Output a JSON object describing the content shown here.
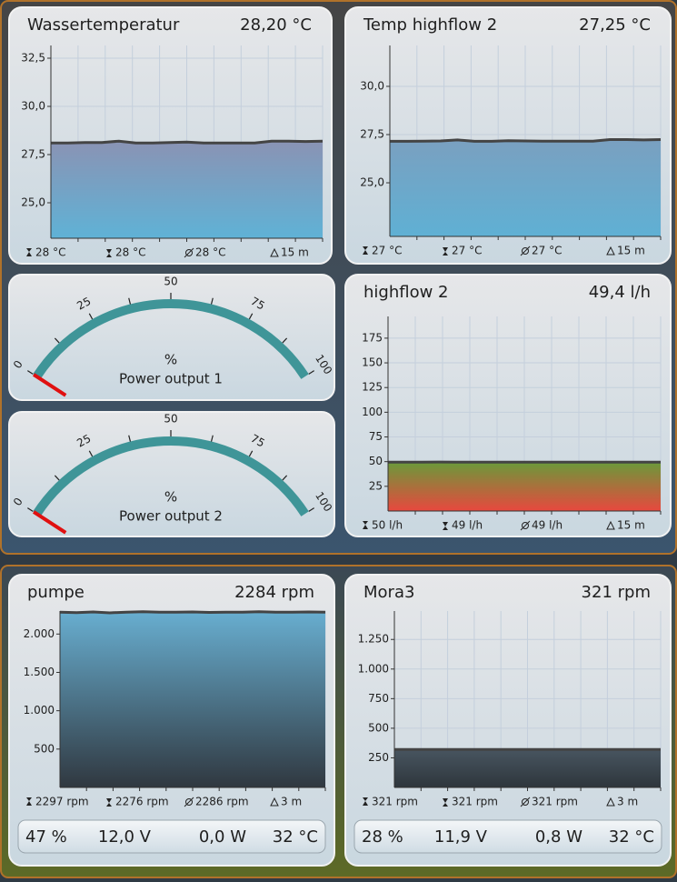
{
  "chart_data": [
    {
      "type": "area",
      "title": "Wassertemperatur",
      "reading": "28,20 °C",
      "ylim": [
        23.16,
        33.16
      ],
      "yticks": [
        {
          "value": 25,
          "label": "25,0"
        },
        {
          "value": 27.5,
          "label": "27,5"
        },
        {
          "value": 30,
          "label": "30,0"
        },
        {
          "value": 32.5,
          "label": "32,5"
        }
      ],
      "values": [
        28.1,
        28.1,
        28.12,
        28.12,
        28.2,
        28.1,
        28.1,
        28.12,
        28.15,
        28.1,
        28.1,
        28.1,
        28.1,
        28.2,
        28.2,
        28.18,
        28.2
      ],
      "colors": [
        "#8a93b4",
        "#5fb2d6"
      ],
      "stats": [
        "28 °C",
        "28 °C",
        "28 °C",
        "15 m"
      ]
    },
    {
      "type": "area",
      "title": "Temp highflow 2",
      "reading": "27,25 °C",
      "ylim": [
        22.22,
        32.12
      ],
      "yticks": [
        {
          "value": 25,
          "label": "25,0"
        },
        {
          "value": 27.5,
          "label": "27,5"
        },
        {
          "value": 30,
          "label": "30,0"
        }
      ],
      "values": [
        27.15,
        27.15,
        27.16,
        27.17,
        27.22,
        27.15,
        27.15,
        27.18,
        27.17,
        27.16,
        27.16,
        27.16,
        27.16,
        27.24,
        27.24,
        27.22,
        27.24
      ],
      "colors": [
        "#7aa0c0",
        "#5fb0d4"
      ],
      "stats": [
        "27 °C",
        "27 °C",
        "27 °C",
        "15 m"
      ]
    },
    {
      "type": "gauge",
      "value": 0,
      "unit": "%",
      "name": "Power output 1",
      "range": [
        0,
        100
      ],
      "ticks": [
        0,
        25,
        50,
        75,
        100
      ],
      "color": "#3f9598",
      "needle_color": "#e01010"
    },
    {
      "type": "area",
      "title": "highflow 2",
      "reading": "49,4 l/h",
      "ylim": [
        0,
        197
      ],
      "yticks": [
        25,
        50,
        75,
        100,
        125,
        150,
        175
      ],
      "values": [
        49.5,
        49.4,
        49.5,
        49.6,
        49.4,
        49.5,
        49.4,
        49.5,
        49.4,
        49.5,
        49.4,
        49.5,
        49.4,
        49.5,
        49.4,
        49.5,
        49.5
      ],
      "colors": [
        "#6a9a3a",
        "#e8483e"
      ],
      "stats": [
        "50 l/h",
        "49 l/h",
        "49 l/h",
        "15 m"
      ]
    },
    {
      "type": "gauge",
      "value": 0,
      "unit": "%",
      "name": "Power output 2",
      "range": [
        0,
        100
      ],
      "ticks": [
        0,
        25,
        50,
        75,
        100
      ],
      "color": "#3f9598",
      "needle_color": "#e01010"
    },
    {
      "type": "area",
      "title": "pumpe",
      "reading": "2284 rpm",
      "ylim": [
        0,
        2300
      ],
      "yticks": [
        500,
        {
          "value": 1000,
          "label": "1.000"
        },
        {
          "value": 1500,
          "label": "1.500"
        },
        {
          "value": 2000,
          "label": "2.000"
        }
      ],
      "values": [
        2285,
        2280,
        2288,
        2276,
        2286,
        2290,
        2284,
        2286,
        2288,
        2282,
        2286,
        2284,
        2290,
        2286,
        2284,
        2288,
        2286
      ],
      "colors": [
        "#68aed0",
        "#303840"
      ],
      "stats": [
        "2297 rpm",
        "2276 rpm",
        "2286 rpm",
        "3 m"
      ],
      "readouts": [
        "47 %",
        "12,0 V",
        "0,0 W",
        "32 °C"
      ]
    },
    {
      "type": "area",
      "title": "Mora3",
      "reading": "321 rpm",
      "ylim": [
        0,
        1490
      ],
      "yticks": [
        250,
        500,
        750,
        {
          "value": 1000,
          "label": "1.000"
        },
        {
          "value": 1250,
          "label": "1.250"
        }
      ],
      "values": [
        321,
        321,
        321,
        321,
        321,
        321,
        321,
        321,
        321,
        321,
        321,
        321,
        321,
        321,
        321,
        321,
        321
      ],
      "colors": [
        "#485560",
        "#2e363c"
      ],
      "stats": [
        "321 rpm",
        "321 rpm",
        "321 rpm",
        "3 m"
      ],
      "readouts": [
        "28 %",
        "11,9 V",
        "0,8 W",
        "32 °C"
      ]
    }
  ]
}
